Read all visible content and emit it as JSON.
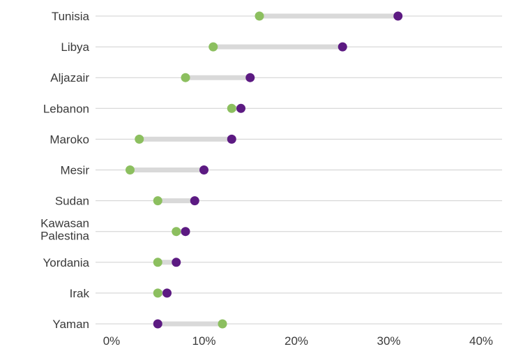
{
  "chart_data": {
    "type": "dumbbell",
    "categories": [
      "Tunisia",
      "Libya",
      "Aljazair",
      "Lebanon",
      "Maroko",
      "Mesir",
      "Sudan",
      "Kawasan Palestina",
      "Yordania",
      "Irak",
      "Yaman"
    ],
    "category_lines": [
      [
        "Tunisia"
      ],
      [
        "Libya"
      ],
      [
        "Aljazair"
      ],
      [
        "Lebanon"
      ],
      [
        "Maroko"
      ],
      [
        "Mesir"
      ],
      [
        "Sudan"
      ],
      [
        "Kawasan",
        "Palestina"
      ],
      [
        "Yordania"
      ],
      [
        "Irak"
      ],
      [
        "Yaman"
      ]
    ],
    "series": [
      {
        "values": [
          16,
          11,
          8,
          13,
          3,
          2,
          5,
          7,
          5,
          5,
          12
        ],
        "color": "#8cbf5f"
      },
      {
        "values": [
          31,
          25,
          15,
          14,
          13,
          10,
          9,
          8,
          7,
          6,
          5
        ],
        "color": "#5c1a82"
      }
    ],
    "x_ticks": [
      "0%",
      "10%",
      "20%",
      "30%",
      "40%"
    ],
    "x_tick_values": [
      0,
      10,
      20,
      30,
      40
    ],
    "xlim": [
      0,
      40
    ],
    "grid": "horizontal",
    "connector_color": "#d9d9d9",
    "gridline_color": "#cfcfcf"
  }
}
